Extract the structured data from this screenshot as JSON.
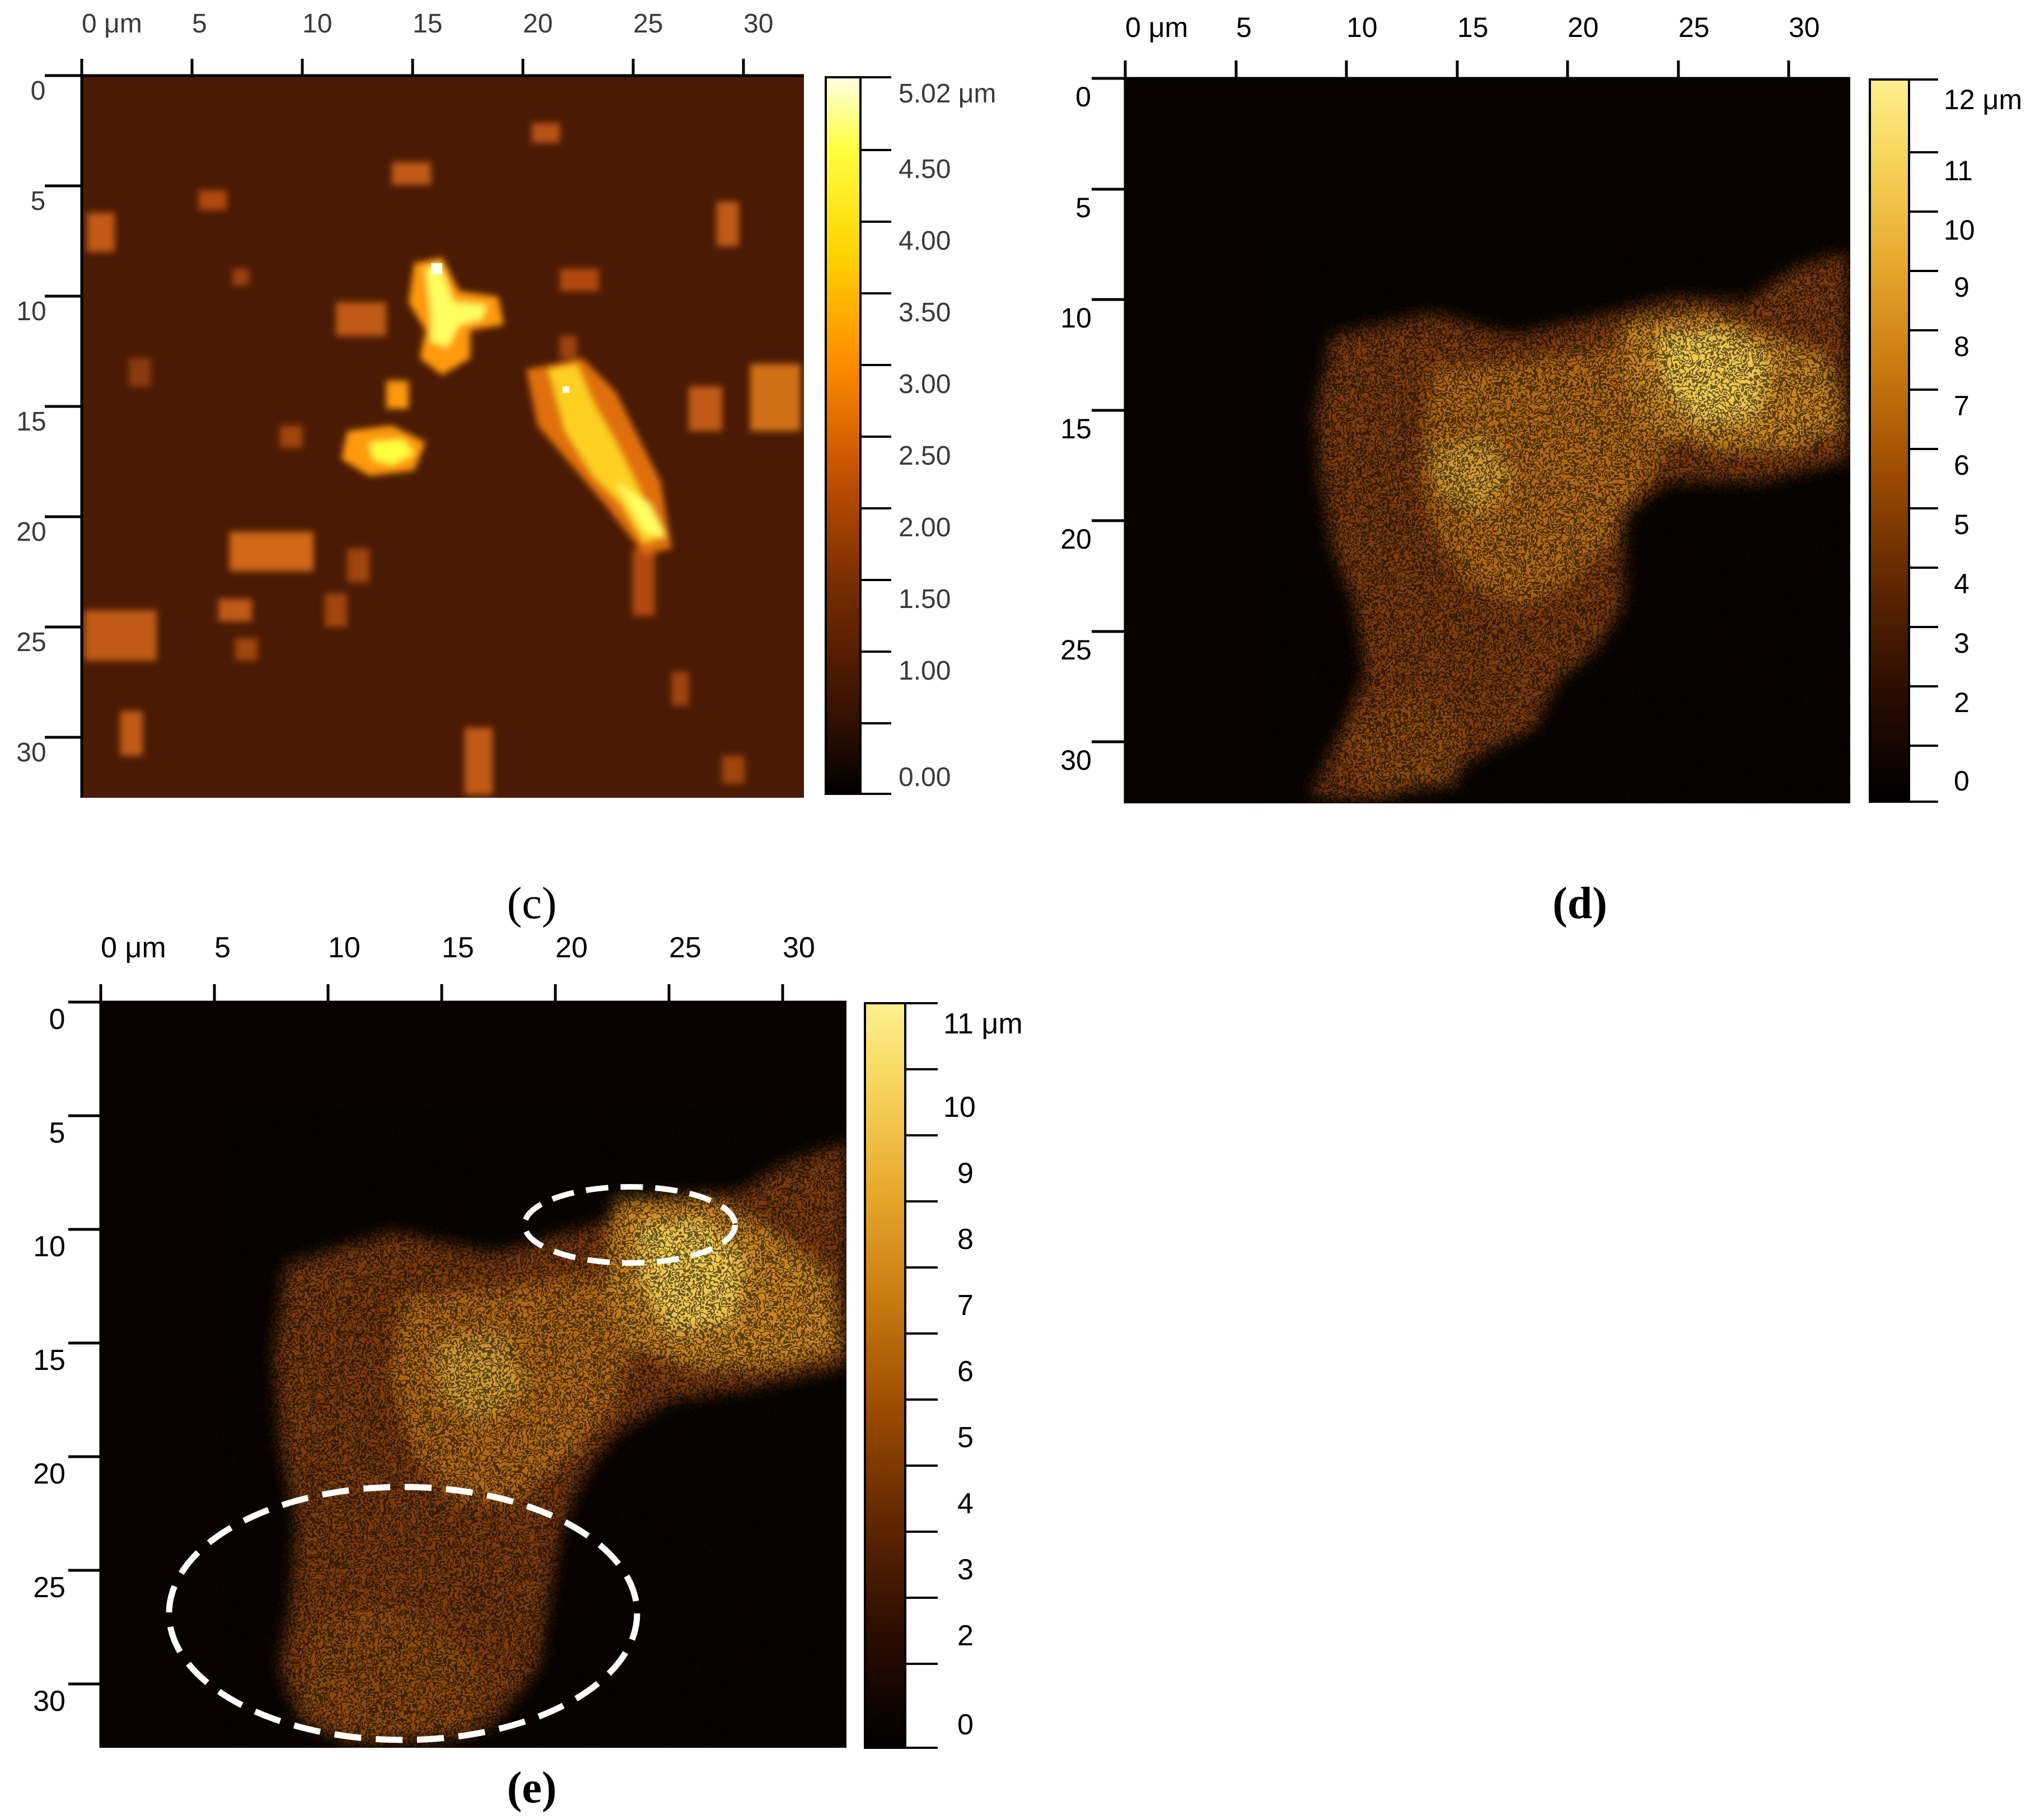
{
  "panels": {
    "c": {
      "caption": "(c)",
      "x_ticks": [
        "0 μm",
        "5",
        "10",
        "15",
        "20",
        "25",
        "30"
      ],
      "y_ticks": [
        "0",
        "5",
        "10",
        "15",
        "20",
        "25",
        "30"
      ],
      "colorbar_labels": [
        "5.02 μm",
        "4.50",
        "4.00",
        "3.50",
        "3.00",
        "2.50",
        "2.00",
        "1.50",
        "1.00",
        "0.00"
      ],
      "colormap": [
        "#000000",
        "#3a1200",
        "#7a2e00",
        "#c45200",
        "#ff8c00",
        "#ffd200",
        "#ffff40",
        "#ffffe0"
      ]
    },
    "d": {
      "caption": "(d)",
      "x_ticks": [
        "0 μm",
        "5",
        "10",
        "15",
        "20",
        "25",
        "30"
      ],
      "y_ticks": [
        "0",
        "5",
        "10",
        "15",
        "20",
        "25",
        "30"
      ],
      "colorbar_labels": [
        "12 μm",
        "11",
        "10",
        "9",
        "8",
        "7",
        "6",
        "5",
        "4",
        "3",
        "2",
        "0"
      ],
      "colormap": [
        "#000000",
        "#2a0c00",
        "#5e2600",
        "#9a4a00",
        "#c87a10",
        "#e8aa30",
        "#f8d860",
        "#fff090"
      ]
    },
    "e": {
      "caption": "(e)",
      "x_ticks": [
        "0 μm",
        "5",
        "10",
        "15",
        "20",
        "25",
        "30"
      ],
      "y_ticks": [
        "0",
        "5",
        "10",
        "15",
        "20",
        "25",
        "30"
      ],
      "colorbar_labels": [
        "11 μm",
        "10",
        "9",
        "8",
        "7",
        "6",
        "5",
        "4",
        "3",
        "2",
        "0"
      ],
      "colormap": [
        "#000000",
        "#2a0c00",
        "#5e2600",
        "#9a4a00",
        "#c87a10",
        "#e8aa30",
        "#f8d860",
        "#fff090"
      ]
    }
  },
  "colors": {
    "background_c": "#4a1a04",
    "background_de": "#080300",
    "annotation_ellipse": "#ffffff"
  }
}
